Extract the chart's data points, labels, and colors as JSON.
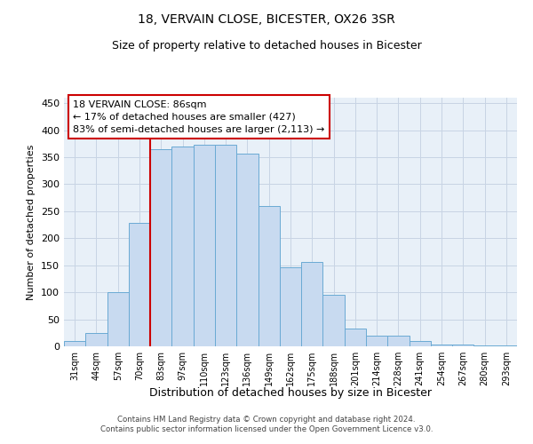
{
  "title1": "18, VERVAIN CLOSE, BICESTER, OX26 3SR",
  "title2": "Size of property relative to detached houses in Bicester",
  "xlabel": "Distribution of detached houses by size in Bicester",
  "ylabel": "Number of detached properties",
  "categories": [
    "31sqm",
    "44sqm",
    "57sqm",
    "70sqm",
    "83sqm",
    "97sqm",
    "110sqm",
    "123sqm",
    "136sqm",
    "149sqm",
    "162sqm",
    "175sqm",
    "188sqm",
    "201sqm",
    "214sqm",
    "228sqm",
    "241sqm",
    "254sqm",
    "267sqm",
    "280sqm",
    "293sqm"
  ],
  "values": [
    10,
    25,
    100,
    228,
    365,
    370,
    373,
    373,
    357,
    260,
    147,
    156,
    95,
    33,
    20,
    20,
    10,
    3,
    3,
    2,
    2
  ],
  "bar_color": "#c8daf0",
  "bar_edge_color": "#6aaad4",
  "grid_color": "#c8d4e4",
  "bg_color": "#e8f0f8",
  "marker_bar_index": 4,
  "marker_label": "18 VERVAIN CLOSE: 86sqm",
  "marker_line1": "← 17% of detached houses are smaller (427)",
  "marker_line2": "83% of semi-detached houses are larger (2,113) →",
  "marker_color": "#cc0000",
  "footer1": "Contains HM Land Registry data © Crown copyright and database right 2024.",
  "footer2": "Contains public sector information licensed under the Open Government Licence v3.0.",
  "ylim": [
    0,
    460
  ],
  "yticks": [
    0,
    50,
    100,
    150,
    200,
    250,
    300,
    350,
    400,
    450
  ]
}
